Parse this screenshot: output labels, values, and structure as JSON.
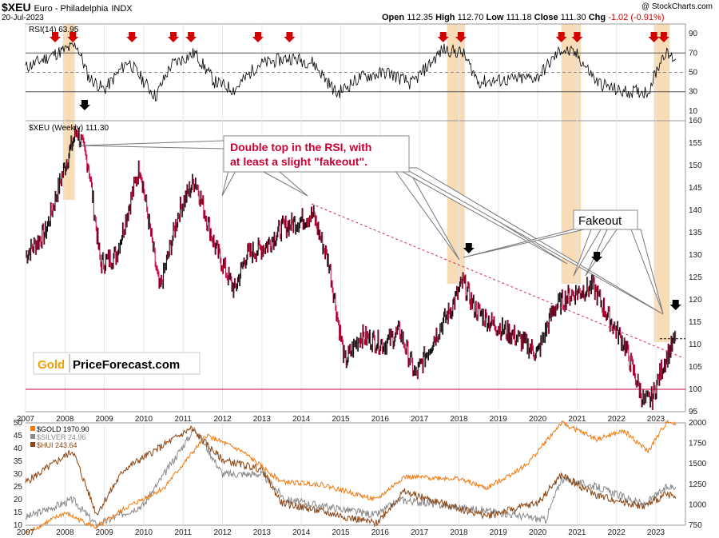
{
  "header": {
    "symbol": "$XEU",
    "name": "Euro - Philadelphia",
    "exchange": "INDX",
    "date": "20-Jul-2023",
    "copyright": "@ StockCharts.com",
    "ohlc": [
      {
        "label": "Open",
        "value": "112.35"
      },
      {
        "label": "High",
        "value": "112.70"
      },
      {
        "label": "Low",
        "value": "111.18"
      },
      {
        "label": "Close",
        "value": "111.30"
      },
      {
        "label": "Chg",
        "value": "-1.02 (-0.91%)"
      }
    ]
  },
  "annotations": {
    "double_top_text_1": "Double top in the RSI, with",
    "double_top_text_2": "at least a slight \"fakeout\".",
    "fakeout_text": "Fakeout",
    "watermark_gold": "Gold",
    "watermark_rest": "PriceForecast.com"
  },
  "colors": {
    "rsi_line": "#000000",
    "price_up": "#000000",
    "price_down": "#c8003c",
    "highlight": "#f7dcb5",
    "arrow_red": "#d40000",
    "arrow_black": "#000000",
    "gold": "#f07a10",
    "silver": "#8a8a8a",
    "hui": "#8b4513",
    "annotation": "#cc0033"
  },
  "chart_data": [
    {
      "type": "line",
      "label": "RSI(14) 63.95",
      "ylim": [
        0,
        100
      ],
      "yticks": [
        10,
        30,
        50,
        70,
        90
      ],
      "reference_lines": [
        30,
        50,
        70
      ],
      "series": [
        {
          "name": "RSI(14)",
          "x": [
            2007.0,
            2007.8,
            2008.3,
            2008.6,
            2009.0,
            2009.6,
            2010.3,
            2010.7,
            2011.3,
            2011.8,
            2012.3,
            2012.9,
            2013.7,
            2014.3,
            2014.9,
            2015.5,
            2016.2,
            2016.8,
            2017.6,
            2018.1,
            2018.5,
            2019.2,
            2020.0,
            2020.6,
            2021.0,
            2021.5,
            2022.1,
            2022.8,
            2023.2,
            2023.5
          ],
          "values": [
            55,
            70,
            78,
            45,
            32,
            62,
            25,
            58,
            70,
            40,
            32,
            58,
            65,
            60,
            28,
            45,
            50,
            38,
            74,
            70,
            40,
            42,
            45,
            74,
            68,
            40,
            30,
            30,
            70,
            63.95
          ]
        }
      ]
    },
    {
      "type": "line",
      "label": "$XEU (Weekly) 111.30",
      "ylim": [
        95,
        160
      ],
      "yticks": [
        95,
        100,
        105,
        110,
        115,
        120,
        125,
        130,
        135,
        140,
        145,
        150,
        155,
        160
      ],
      "reference_lines": [
        100
      ],
      "series": [
        {
          "name": "$XEU (Weekly)",
          "x": [
            2007.0,
            2007.5,
            2008.0,
            2008.3,
            2008.6,
            2008.9,
            2009.3,
            2009.9,
            2010.4,
            2010.9,
            2011.3,
            2011.8,
            2012.3,
            2012.6,
            2013.1,
            2013.5,
            2014.3,
            2014.7,
            2015.1,
            2015.5,
            2016.1,
            2016.5,
            2016.9,
            2017.4,
            2017.8,
            2018.1,
            2018.4,
            2018.8,
            2019.4,
            2020.0,
            2020.4,
            2020.8,
            2021.4,
            2021.8,
            2022.2,
            2022.7,
            2022.9,
            2023.2,
            2023.5
          ],
          "values": [
            130,
            135,
            150,
            158,
            150,
            128,
            130,
            150,
            122,
            140,
            147,
            132,
            122,
            130,
            132,
            136,
            139,
            128,
            106,
            112,
            110,
            113,
            103,
            112,
            118,
            124,
            118,
            115,
            112,
            108,
            118,
            121,
            123,
            116,
            110,
            97,
            98,
            106,
            111.3
          ]
        }
      ],
      "x_axis_labels": [
        "2007",
        "2008",
        "2009",
        "2010",
        "2011",
        "2012",
        "2013",
        "2014",
        "2015",
        "2016",
        "2017",
        "2018",
        "2019",
        "2020",
        "2021",
        "2022",
        "2023"
      ]
    },
    {
      "type": "line",
      "legend": [
        "$GOLD 1970.90",
        "$SILVER 24.96",
        "$HUI 243.64"
      ],
      "ylim_left": [
        10,
        50
      ],
      "ylim_right": [
        750,
        2000
      ],
      "yticks_left": [
        10,
        15,
        20,
        25,
        30,
        35,
        40,
        45,
        50
      ],
      "yticks_right": [
        750,
        1000,
        1250,
        1500,
        1750,
        2000
      ],
      "x_axis_labels": [
        "2007",
        "2008",
        "2009",
        "2010",
        "2011",
        "2012",
        "2013",
        "2014",
        "2015",
        "2016",
        "2017",
        "2018",
        "2019",
        "2020",
        "2021",
        "2022",
        "2023"
      ],
      "series": [
        {
          "name": "$GOLD",
          "x": [
            2007.0,
            2008.0,
            2008.8,
            2009.5,
            2010.5,
            2011.6,
            2012.5,
            2013.5,
            2014.5,
            2015.9,
            2016.6,
            2018.0,
            2018.7,
            2019.7,
            2020.6,
            2021.5,
            2022.2,
            2022.8,
            2023.3,
            2023.5
          ],
          "values": [
            650,
            900,
            720,
            950,
            1200,
            1850,
            1650,
            1280,
            1250,
            1060,
            1340,
            1320,
            1200,
            1480,
            2000,
            1800,
            1900,
            1650,
            2030,
            1970.9
          ]
        },
        {
          "name": "$SILVER",
          "x": [
            2007.0,
            2008.2,
            2008.8,
            2010.0,
            2011.3,
            2012.0,
            2013.0,
            2013.6,
            2015.9,
            2016.5,
            2018.0,
            2019.0,
            2020.2,
            2020.6,
            2021.5,
            2022.7,
            2023.3,
            2023.5
          ],
          "values": [
            13,
            20,
            10,
            18,
            48,
            30,
            30,
            20,
            14,
            20,
            17,
            15,
            12,
            28,
            25,
            18,
            25,
            24.96
          ]
        },
        {
          "name": "$HUI",
          "x": [
            2007.0,
            2008.2,
            2008.8,
            2009.5,
            2011.2,
            2012.0,
            2013.0,
            2013.5,
            2015.9,
            2016.6,
            2018.0,
            2018.7,
            2020.0,
            2020.6,
            2021.5,
            2022.7,
            2023.3,
            2023.5
          ],
          "values": [
            330,
            500,
            160,
            400,
            620,
            450,
            400,
            220,
            110,
            280,
            190,
            150,
            220,
            370,
            260,
            200,
            270,
            243.64
          ]
        }
      ]
    }
  ]
}
